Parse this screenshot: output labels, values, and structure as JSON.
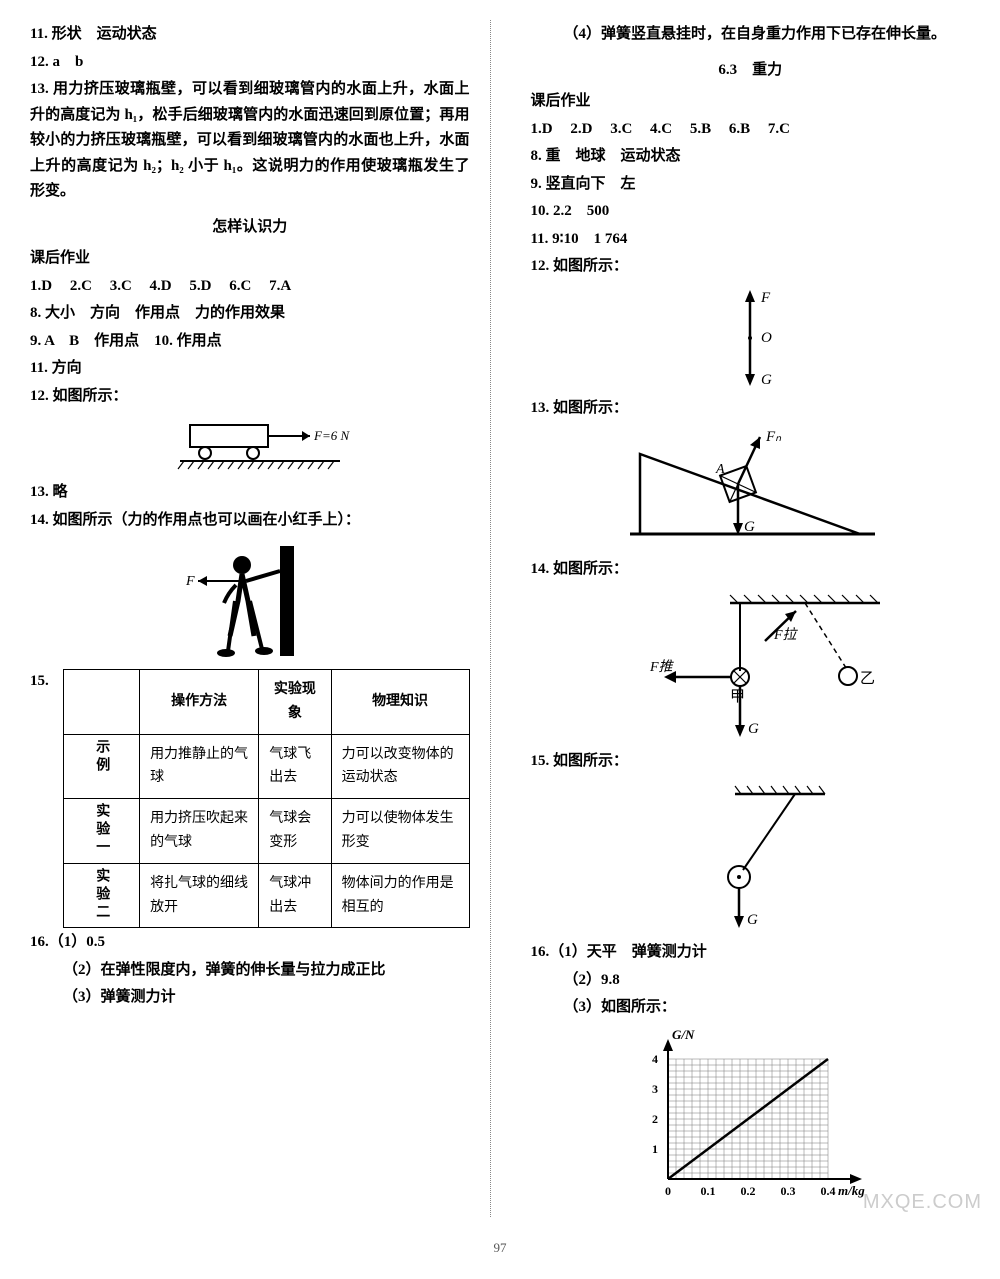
{
  "left": {
    "q11": "11. 形状　运动状态",
    "q12": "12. a　b",
    "q13": "13. 用力挤压玻璃瓶壁，可以看到细玻璃管内的水面上升，水面上升的高度记为 h₁，松手后细玻璃管内的水面迅速回到原位置；再用较小的力挤压玻璃瓶壁，可以看到细玻璃管内的水面也上升，水面上升的高度记为 h₂；h₂ 小于 h₁。这说明力的作用使玻璃瓶发生了形变。",
    "title1": "怎样认识力",
    "hw_label": "课后作业",
    "mc": [
      "1.D",
      "2.C",
      "3.C",
      "4.D",
      "5.D",
      "6.C",
      "7.A"
    ],
    "q8": "8. 大小　方向　作用点　力的作用效果",
    "q9": "9. A　B　作用点　10. 作用点",
    "q11b": "11. 方向",
    "q12b": "12. 如图所示：",
    "fig12_label": "F=6 N",
    "q13b": "13. 略",
    "q14": "14. 如图所示（力的作用点也可以画在小红手上）：",
    "fig14_F": "F",
    "q15_prefix": "15.",
    "table": {
      "headers": [
        "",
        "操作方法",
        "实验现象",
        "物理知识"
      ],
      "rows": [
        {
          "label": "示例",
          "c1": "用力推静止的气球",
          "c2": "气球飞出去",
          "c3": "力可以改变物体的运动状态"
        },
        {
          "label": "实验一",
          "c1": "用力挤压吹起来的气球",
          "c2": "气球会变形",
          "c3": "力可以使物体发生形变"
        },
        {
          "label": "实验二",
          "c1": "将扎气球的细线放开",
          "c2": "气球冲出去",
          "c3": "物体间力的作用是相互的"
        }
      ]
    },
    "q16_1": "16.（1）0.5",
    "q16_2": "（2）在弹性限度内，弹簧的伸长量与拉力成正比",
    "q16_3": "（3）弹簧测力计"
  },
  "right": {
    "q_top": "（4）弹簧竖直悬挂时，在自身重力作用下已存在伸长量。",
    "title": "6.3　重力",
    "hw_label": "课后作业",
    "mc": [
      "1.D",
      "2.D",
      "3.C",
      "4.C",
      "5.B",
      "6.B",
      "7.C"
    ],
    "q8": "8. 重　地球　运动状态",
    "q9": "9. 竖直向下　左",
    "q10": "10. 2.2　500",
    "q11": "11. 9∶10　1 764",
    "q12": "12. 如图所示：",
    "fig12": {
      "F": "F",
      "O": "O",
      "G": "G"
    },
    "q13": "13. 如图所示：",
    "fig13": {
      "FN": "Fₙ",
      "G": "G",
      "A": "A"
    },
    "q14": "14. 如图所示：",
    "fig14": {
      "F_pull": "F拉",
      "F_push": "F推",
      "G": "G",
      "jia": "甲",
      "yi": "乙"
    },
    "q15": "15. 如图所示：",
    "fig15": {
      "G": "G"
    },
    "q16_1": "16.（1）天平　弹簧测力计",
    "q16_2": "（2）9.8",
    "q16_3": "（3）如图所示：",
    "graph": {
      "ylabel": "G/N",
      "xlabel_unit": "m/kg",
      "yticks": [
        "1",
        "2",
        "3",
        "4"
      ],
      "xticks": [
        "0",
        "0.1",
        "0.2",
        "0.3",
        "0.4"
      ],
      "ymax": 4,
      "xmax": 0.4,
      "points": [
        [
          0,
          0
        ],
        [
          0.1,
          1
        ],
        [
          0.2,
          2
        ],
        [
          0.3,
          3
        ],
        [
          0.4,
          4
        ]
      ],
      "grid_color": "#777",
      "line_color": "#000",
      "axis_color": "#000",
      "bg": "#ffffff"
    }
  },
  "page_num": "97",
  "watermark": "MXQE.COM"
}
